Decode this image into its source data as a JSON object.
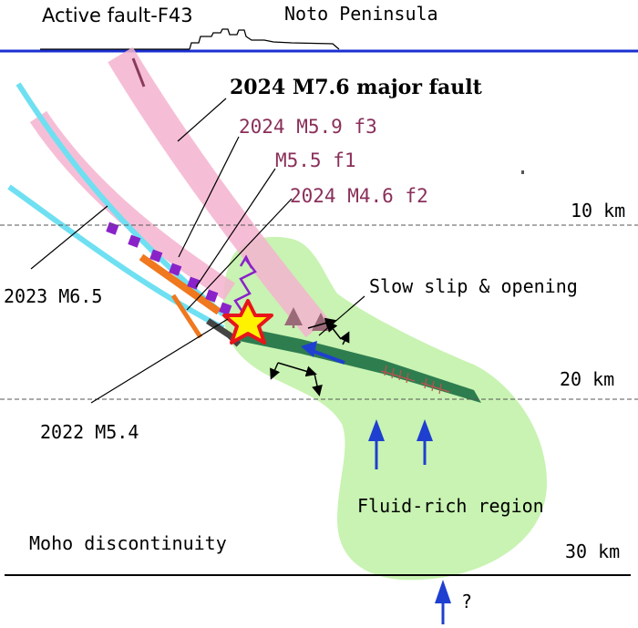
{
  "labels": {
    "active_fault": "Active fault-F43",
    "peninsula": "Noto Peninsula",
    "major_fault": "2024 M7.6 major fault",
    "m59": "2024 M5.9 f3",
    "m55": "M5.5 f1",
    "m46": "2024 M4.6 f2",
    "m65": "2023 M6.5",
    "slow_slip": "Slow slip & opening",
    "m54": "2022 M5.4",
    "fluid": "Fluid-rich region",
    "moho": "Moho discontinuity",
    "qmark": "?"
  },
  "depths": {
    "d10": "10 km",
    "d20": "20 km",
    "d30": "30 km"
  },
  "colors": {
    "surface": "#1a2fd0",
    "fluid": "#c8f3b2",
    "slab": "#2e7d4f",
    "pink": "#f4b3cf",
    "cyan": "#6fe0f2",
    "purple": "#8a22c9",
    "orange": "#f0781e",
    "star_fill": "#fff200",
    "star_edge": "#e8151b",
    "arrow_blue": "#1f3fd0",
    "label_maroon": "#8a2f5a"
  }
}
